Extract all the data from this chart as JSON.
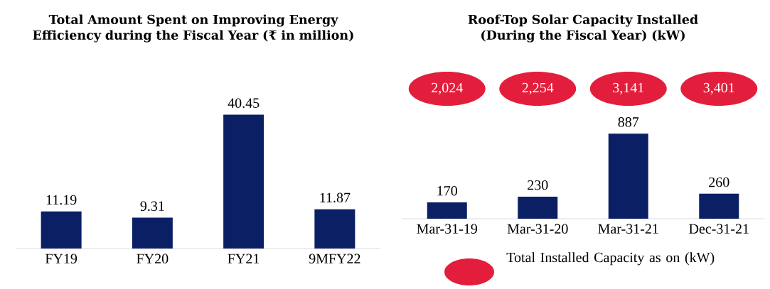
{
  "chart_data": [
    {
      "type": "bar",
      "title": "Total Amount Spent on Improving Energy Efficiency during the Fiscal Year (₹ in million)",
      "categories": [
        "FY19",
        "FY20",
        "FY21",
        "9MFY22"
      ],
      "values": [
        11.19,
        9.31,
        40.45,
        11.87
      ],
      "color": "#0b1f65",
      "data_labels": true
    },
    {
      "type": "bar",
      "title": "Roof-Top Solar Capacity Installed (During the Fiscal Year) (kW)",
      "categories": [
        "Mar-31-19",
        "Mar-31-20",
        "Mar-31-21",
        "Dec-31-21"
      ],
      "values": [
        170,
        230,
        887,
        260
      ],
      "color": "#0b1f65",
      "data_labels": true,
      "annotations": [
        "2,024",
        "2,254",
        "3,141",
        "3,401",
        "Total Installed Capacity as on (kW)"
      ]
    }
  ]
}
